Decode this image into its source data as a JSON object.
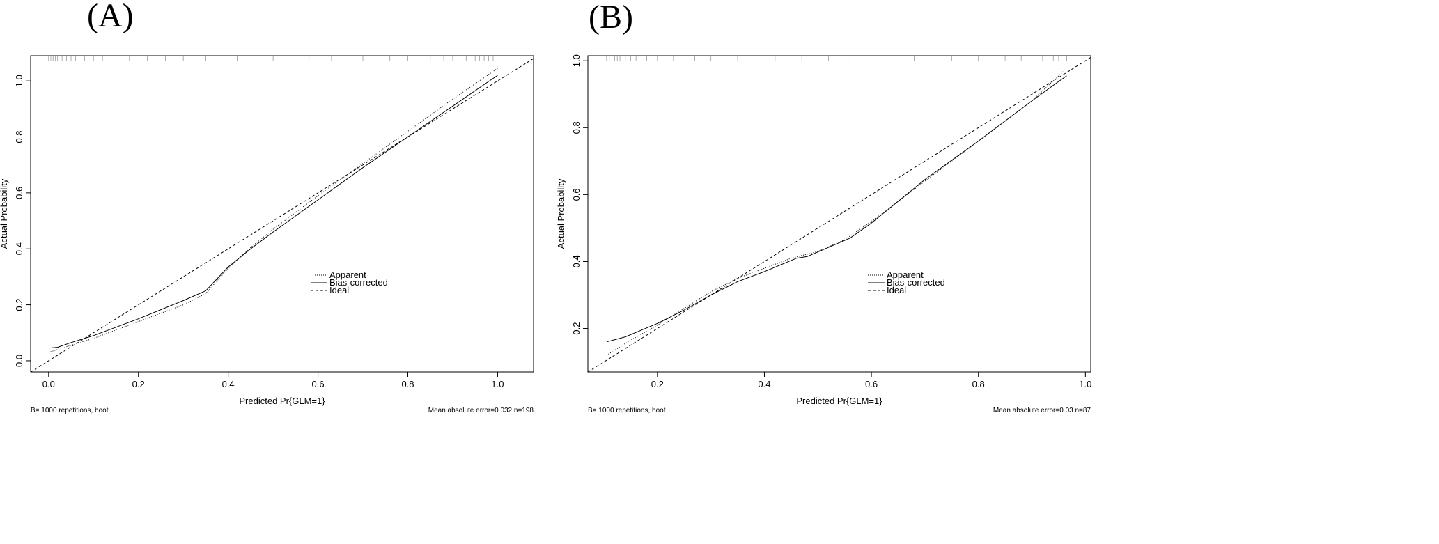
{
  "chart_data": [
    {
      "type": "line",
      "panel_label": "(A)",
      "xlabel": "Predicted Pr{GLM=1}",
      "ylabel": "Actual Probability",
      "xlim": [
        -0.04,
        1.08
      ],
      "ylim": [
        -0.04,
        1.09
      ],
      "xticks": [
        0.0,
        0.2,
        0.4,
        0.6,
        0.8,
        1.0
      ],
      "yticks": [
        0.0,
        0.2,
        0.4,
        0.6,
        0.8,
        1.0
      ],
      "xtick_labels": [
        "0.0",
        "0.2",
        "0.4",
        "0.6",
        "0.8",
        "1.0"
      ],
      "ytick_labels": [
        "0.0",
        "0.2",
        "0.4",
        "0.6",
        "0.8",
        "1.0"
      ],
      "grid": false,
      "legend_position": "center-right",
      "series": [
        {
          "name": "Apparent",
          "style": "dotted",
          "x": [
            0.0,
            0.05,
            0.1,
            0.2,
            0.3,
            0.35,
            0.4,
            0.45,
            0.5,
            0.6,
            0.7,
            0.8,
            0.9,
            1.0
          ],
          "y": [
            0.03,
            0.055,
            0.08,
            0.14,
            0.2,
            0.24,
            0.33,
            0.405,
            0.47,
            0.59,
            0.705,
            0.82,
            0.935,
            1.045
          ]
        },
        {
          "name": "Bias-corrected",
          "style": "solid",
          "x": [
            0.0,
            0.02,
            0.05,
            0.1,
            0.2,
            0.3,
            0.35,
            0.4,
            0.45,
            0.5,
            0.6,
            0.7,
            0.8,
            0.9,
            1.0
          ],
          "y": [
            0.045,
            0.048,
            0.065,
            0.09,
            0.15,
            0.215,
            0.25,
            0.335,
            0.4,
            0.46,
            0.575,
            0.69,
            0.8,
            0.91,
            1.02
          ]
        },
        {
          "name": "Ideal",
          "style": "dashed",
          "x": [
            -0.04,
            1.08
          ],
          "y": [
            -0.04,
            1.08
          ]
        }
      ],
      "rug_x": [
        0.0,
        0.005,
        0.01,
        0.015,
        0.02,
        0.03,
        0.04,
        0.05,
        0.06,
        0.08,
        0.1,
        0.12,
        0.15,
        0.18,
        0.22,
        0.26,
        0.3,
        0.35,
        0.42,
        0.5,
        0.58,
        0.63,
        0.7,
        0.76,
        0.8,
        0.85,
        0.88,
        0.9,
        0.93,
        0.95,
        0.96,
        0.97,
        0.98,
        0.99
      ],
      "footer_left": "B= 1000 repetitions, boot",
      "footer_right": "Mean absolute error=0.032 n=198"
    },
    {
      "type": "line",
      "panel_label": "(B)",
      "xlabel": "Predicted Pr{GLM=1}",
      "ylabel": "Actual Probability",
      "xlim": [
        0.07,
        1.01
      ],
      "ylim": [
        0.07,
        1.015
      ],
      "xticks": [
        0.2,
        0.4,
        0.6,
        0.8,
        1.0
      ],
      "yticks": [
        0.2,
        0.4,
        0.6,
        0.8,
        1.0
      ],
      "xtick_labels": [
        "0.2",
        "0.4",
        "0.6",
        "0.8",
        "1.0"
      ],
      "ytick_labels": [
        "0.2",
        "0.4",
        "0.6",
        "0.8",
        "1.0"
      ],
      "grid": false,
      "legend_position": "center-right",
      "series": [
        {
          "name": "Apparent",
          "style": "dotted",
          "x": [
            0.105,
            0.15,
            0.2,
            0.25,
            0.3,
            0.35,
            0.4,
            0.45,
            0.5,
            0.55,
            0.6,
            0.7,
            0.8,
            0.9,
            0.96
          ],
          "y": [
            0.12,
            0.165,
            0.21,
            0.26,
            0.31,
            0.35,
            0.38,
            0.41,
            0.43,
            0.465,
            0.52,
            0.64,
            0.76,
            0.88,
            0.97
          ]
        },
        {
          "name": "Bias-corrected",
          "style": "solid",
          "x": [
            0.105,
            0.14,
            0.17,
            0.2,
            0.25,
            0.3,
            0.35,
            0.4,
            0.46,
            0.48,
            0.56,
            0.6,
            0.7,
            0.8,
            0.9,
            0.93,
            0.965
          ],
          "y": [
            0.16,
            0.175,
            0.195,
            0.215,
            0.255,
            0.3,
            0.34,
            0.37,
            0.41,
            0.415,
            0.47,
            0.515,
            0.645,
            0.76,
            0.88,
            0.915,
            0.955
          ]
        },
        {
          "name": "Ideal",
          "style": "dashed",
          "x": [
            0.07,
            1.01
          ],
          "y": [
            0.07,
            1.01
          ]
        }
      ],
      "rug_x": [
        0.105,
        0.11,
        0.115,
        0.12,
        0.125,
        0.13,
        0.14,
        0.15,
        0.16,
        0.18,
        0.2,
        0.23,
        0.27,
        0.3,
        0.35,
        0.42,
        0.47,
        0.52,
        0.56,
        0.62,
        0.68,
        0.75,
        0.8,
        0.85,
        0.88,
        0.9,
        0.92,
        0.94,
        0.95,
        0.96,
        0.965
      ],
      "footer_left": "B= 1000 repetitions, boot",
      "footer_right": "Mean absolute error=0.03 n=87"
    }
  ]
}
